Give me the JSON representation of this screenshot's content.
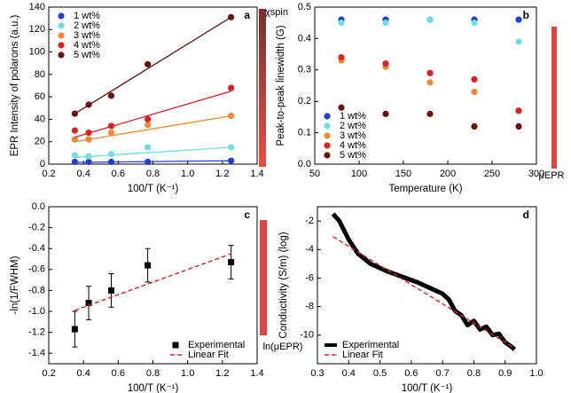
{
  "chart_data": [
    {
      "type": "scatter",
      "panel_label": "a",
      "xlabel": "100/T (K⁻¹)",
      "ylabel": "EPR Intensity of polarons (a.u.)",
      "annotation": "χspin",
      "x": [
        0.35,
        0.43,
        0.56,
        0.77,
        1.25
      ],
      "fit_x": [
        0.35,
        1.25
      ],
      "xlim": [
        0.2,
        1.4
      ],
      "xticks": [
        0.2,
        0.4,
        0.6,
        0.8,
        {
          "value": 1.0,
          "label": "1.0"
        },
        1.2,
        1.4
      ],
      "ylim": [
        0,
        140
      ],
      "yticks": [
        0,
        20,
        40,
        60,
        80,
        100,
        120,
        140
      ],
      "legend": "upper left",
      "series": [
        {
          "name": "1 wt%",
          "color": "#1f3fd6",
          "marker": "circle",
          "values": [
            2,
            2,
            2,
            2,
            3
          ],
          "fit": [
            1.5,
            3
          ]
        },
        {
          "name": "2 wt%",
          "color": "#6ee0e0",
          "marker": "circle",
          "values": [
            8,
            7,
            9,
            15,
            15
          ],
          "fit": [
            6,
            15
          ]
        },
        {
          "name": "3 wt%",
          "color": "#f08a30",
          "marker": "circle",
          "values": [
            22,
            22,
            28,
            35,
            43
          ],
          "fit": [
            20,
            43
          ]
        },
        {
          "name": "4 wt%",
          "color": "#e02020",
          "marker": "circle",
          "values": [
            30,
            28,
            34,
            40,
            68
          ],
          "fit": [
            24,
            65
          ]
        },
        {
          "name": "5 wt%",
          "color": "#6a1010",
          "marker": "circle",
          "values": [
            45,
            53,
            61,
            89,
            131
          ],
          "fit": [
            45,
            131
          ]
        }
      ]
    },
    {
      "type": "scatter",
      "panel_label": "b",
      "xlabel": "Temperature (K)",
      "ylabel": "Peak-to-peak linewidth (G)",
      "annotation": "μEPR",
      "x": [
        80,
        130,
        180,
        230,
        280
      ],
      "xlim": [
        50,
        300
      ],
      "xticks": [
        50,
        100,
        150,
        200,
        250,
        300
      ],
      "ylim": [
        0,
        0.5
      ],
      "yticks": [
        {
          "value": 0,
          "label": "0.0"
        },
        0.1,
        0.2,
        0.3,
        0.4,
        0.5
      ],
      "legend": "lower left",
      "series": [
        {
          "name": "1 wt%",
          "color": "#1f3fd6",
          "marker": "circle",
          "values": [
            0.46,
            0.46,
            0.46,
            0.46,
            0.46
          ]
        },
        {
          "name": "2 wt%",
          "color": "#6ee0e0",
          "marker": "circle",
          "values": [
            0.45,
            0.45,
            0.46,
            0.45,
            0.39
          ]
        },
        {
          "name": "3 wt%",
          "color": "#f08a30",
          "marker": "circle",
          "values": [
            0.33,
            0.31,
            0.26,
            0.23,
            0.17
          ]
        },
        {
          "name": "4 wt%",
          "color": "#e02020",
          "marker": "circle",
          "values": [
            0.34,
            0.32,
            0.29,
            0.27,
            0.17
          ]
        },
        {
          "name": "5 wt%",
          "color": "#6a1010",
          "marker": "circle",
          "values": [
            0.18,
            0.16,
            0.16,
            0.12,
            0.12
          ]
        }
      ]
    },
    {
      "type": "scatter",
      "panel_label": "c",
      "xlabel": "100/T (K⁻¹)",
      "ylabel": "-ln(1/FWHM)",
      "annotation": "ln(μEPR)",
      "x": [
        0.35,
        0.43,
        0.56,
        0.77,
        1.25
      ],
      "xlim": [
        0.2,
        1.4
      ],
      "xticks": [
        0.2,
        0.4,
        0.6,
        0.8,
        {
          "value": 1.0,
          "label": "1.0"
        },
        1.2,
        1.4
      ],
      "ylim": [
        -1.5,
        0
      ],
      "yticks": [
        -1.4,
        -1.2,
        {
          "value": -1.0,
          "label": "-1.0"
        },
        -0.8,
        -0.6,
        -0.4,
        -0.2,
        {
          "value": 0,
          "label": "0.0"
        }
      ],
      "legend": "lower right",
      "series": [
        {
          "name": "Experimental",
          "color": "#000000",
          "marker": "square",
          "values": [
            -1.17,
            -0.92,
            -0.8,
            -0.56,
            -0.53
          ],
          "errors": [
            0.17,
            0.16,
            0.16,
            0.16,
            0.16
          ]
        },
        {
          "name": "Linear Fit",
          "color": "#e02020",
          "line": "dashed",
          "x": [
            0.35,
            1.25
          ],
          "values": [
            -0.99,
            -0.45
          ]
        }
      ]
    },
    {
      "type": "scatter",
      "panel_label": "d",
      "xlabel": "100/T (K⁻¹)",
      "ylabel": "Conductivity (S/m) (log)",
      "xlim": [
        0.3,
        1.0
      ],
      "xticks": [
        0.3,
        0.4,
        0.5,
        0.6,
        0.7,
        0.8,
        0.9,
        {
          "value": 1.0,
          "label": "1.0"
        }
      ],
      "ylim": [
        -12,
        -1
      ],
      "yticks": [
        -10,
        -8,
        -6,
        -4,
        -2
      ],
      "legend": "lower left",
      "series": [
        {
          "name": "Experimental",
          "color": "#000000",
          "line": "thick",
          "x": [
            0.35,
            0.37,
            0.4,
            0.43,
            0.47,
            0.52,
            0.57,
            0.62,
            0.67,
            0.7,
            0.72,
            0.74,
            0.76,
            0.78,
            0.8,
            0.82,
            0.84,
            0.86,
            0.88,
            0.9,
            0.92,
            0.93
          ],
          "values": [
            -1.5,
            -2,
            -3.3,
            -4.3,
            -5.0,
            -5.5,
            -5.9,
            -6.3,
            -6.8,
            -7.1,
            -7.5,
            -8.3,
            -8.6,
            -9.3,
            -9.0,
            -9.6,
            -9.4,
            -10.0,
            -9.9,
            -10.5,
            -10.8,
            -11.0
          ]
        },
        {
          "name": "Linear Fit",
          "color": "#e02020",
          "line": "dashed",
          "x": [
            0.35,
            0.93
          ],
          "values": [
            -3.1,
            -10.9
          ]
        }
      ]
    }
  ]
}
